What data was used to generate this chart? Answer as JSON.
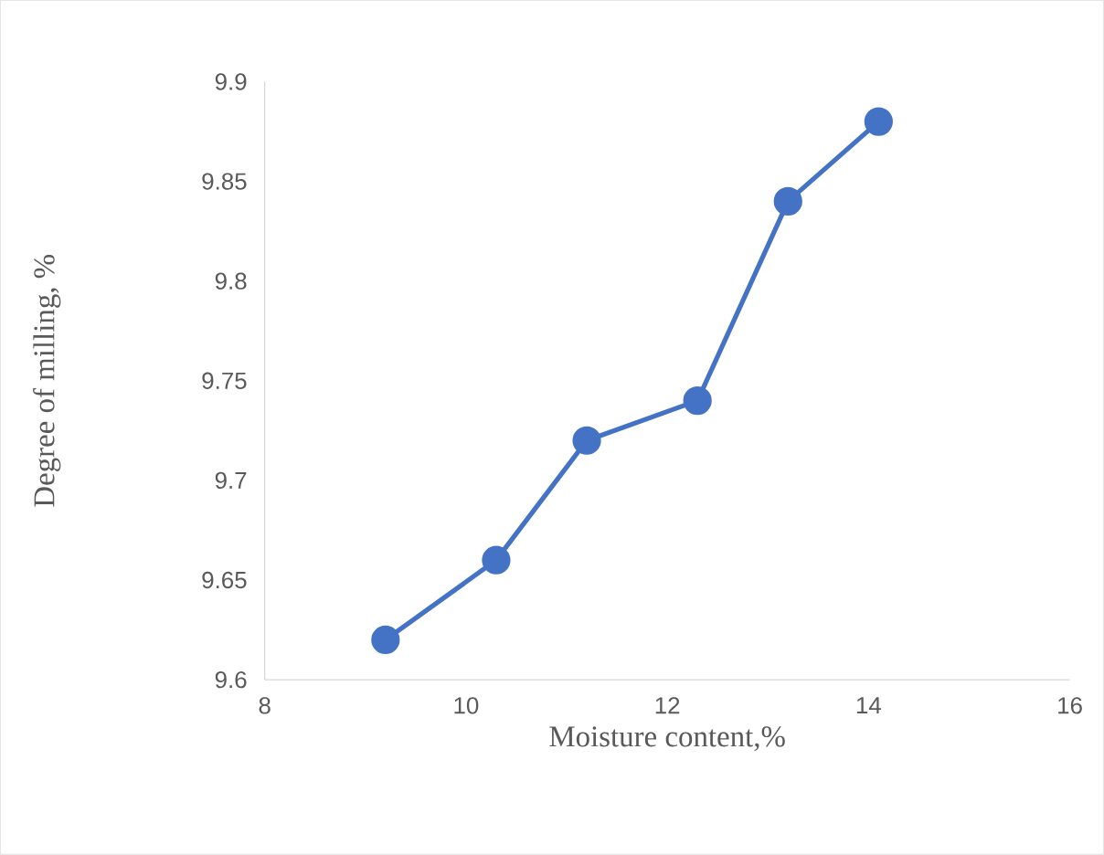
{
  "chart_data": {
    "type": "line",
    "xlabel": "Moisture content,%",
    "ylabel": "Degree of milling, %",
    "x": [
      9.2,
      10.3,
      11.2,
      12.3,
      13.2,
      14.1
    ],
    "series": [
      {
        "color": "#4472c4",
        "values": [
          9.62,
          9.66,
          9.72,
          9.74,
          9.84,
          9.88
        ]
      }
    ],
    "xlim": [
      8,
      16
    ],
    "xticks": [
      8,
      10,
      12,
      14,
      16
    ],
    "ylim": [
      9.6,
      9.9
    ],
    "yticks": [
      9.6,
      9.65,
      9.7,
      9.75,
      9.8,
      9.85,
      9.9
    ],
    "grid": false,
    "marker": "circle",
    "line_style": "solid"
  }
}
